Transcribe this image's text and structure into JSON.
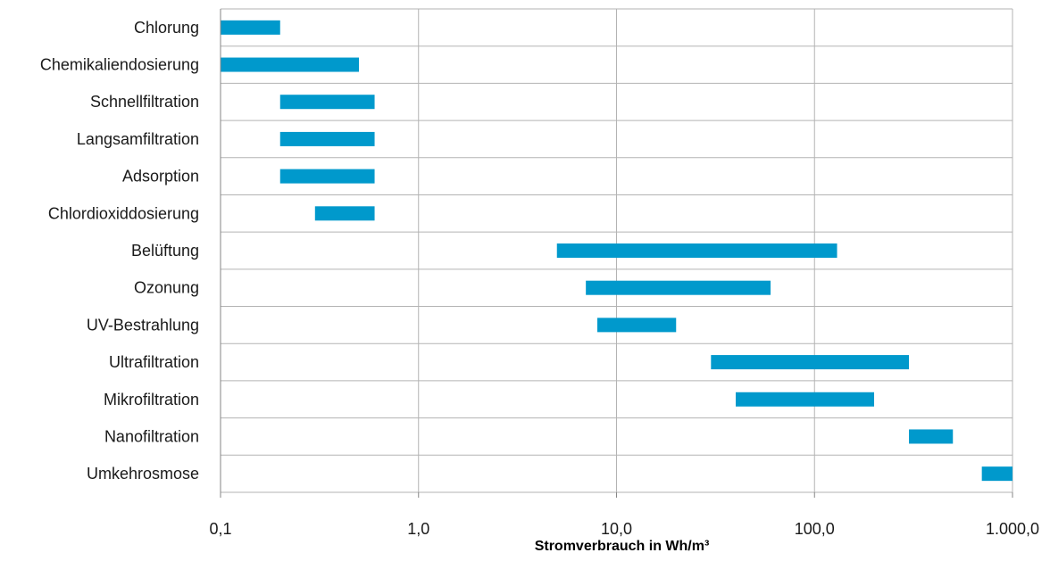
{
  "chart_data": {
    "type": "bar",
    "orientation": "horizontal",
    "style": "floating-range",
    "bar_color": "#0099cc",
    "grid": true,
    "legend": "none",
    "x_scale": "log",
    "xlim": [
      0.1,
      1000
    ],
    "xticks": [
      0.1,
      1,
      10,
      100,
      1000
    ],
    "xtick_labels": [
      "0,1",
      "1,0",
      "10,0",
      "100,0",
      "1.000,0"
    ],
    "xlabel": "Stromverbrauch in Wh/m³",
    "ylabel": "",
    "title": "",
    "categories": [
      "Chlorung",
      "Chemikaliendosierung",
      "Schnellfiltration",
      "Langsamfiltration",
      "Adsorption",
      "Chlordioxiddosierung",
      "Belüftung",
      "Ozonung",
      "UV-Bestrahlung",
      "Ultrafiltration",
      "Mikrofiltration",
      "Nanofiltration",
      "Umkehrosmose"
    ],
    "ranges": [
      [
        0.1,
        0.2
      ],
      [
        0.1,
        0.5
      ],
      [
        0.2,
        0.6
      ],
      [
        0.2,
        0.6
      ],
      [
        0.2,
        0.6
      ],
      [
        0.3,
        0.6
      ],
      [
        5,
        130
      ],
      [
        7,
        60
      ],
      [
        8,
        20
      ],
      [
        30,
        300
      ],
      [
        40,
        200
      ],
      [
        300,
        500
      ],
      [
        700,
        1000
      ]
    ]
  }
}
